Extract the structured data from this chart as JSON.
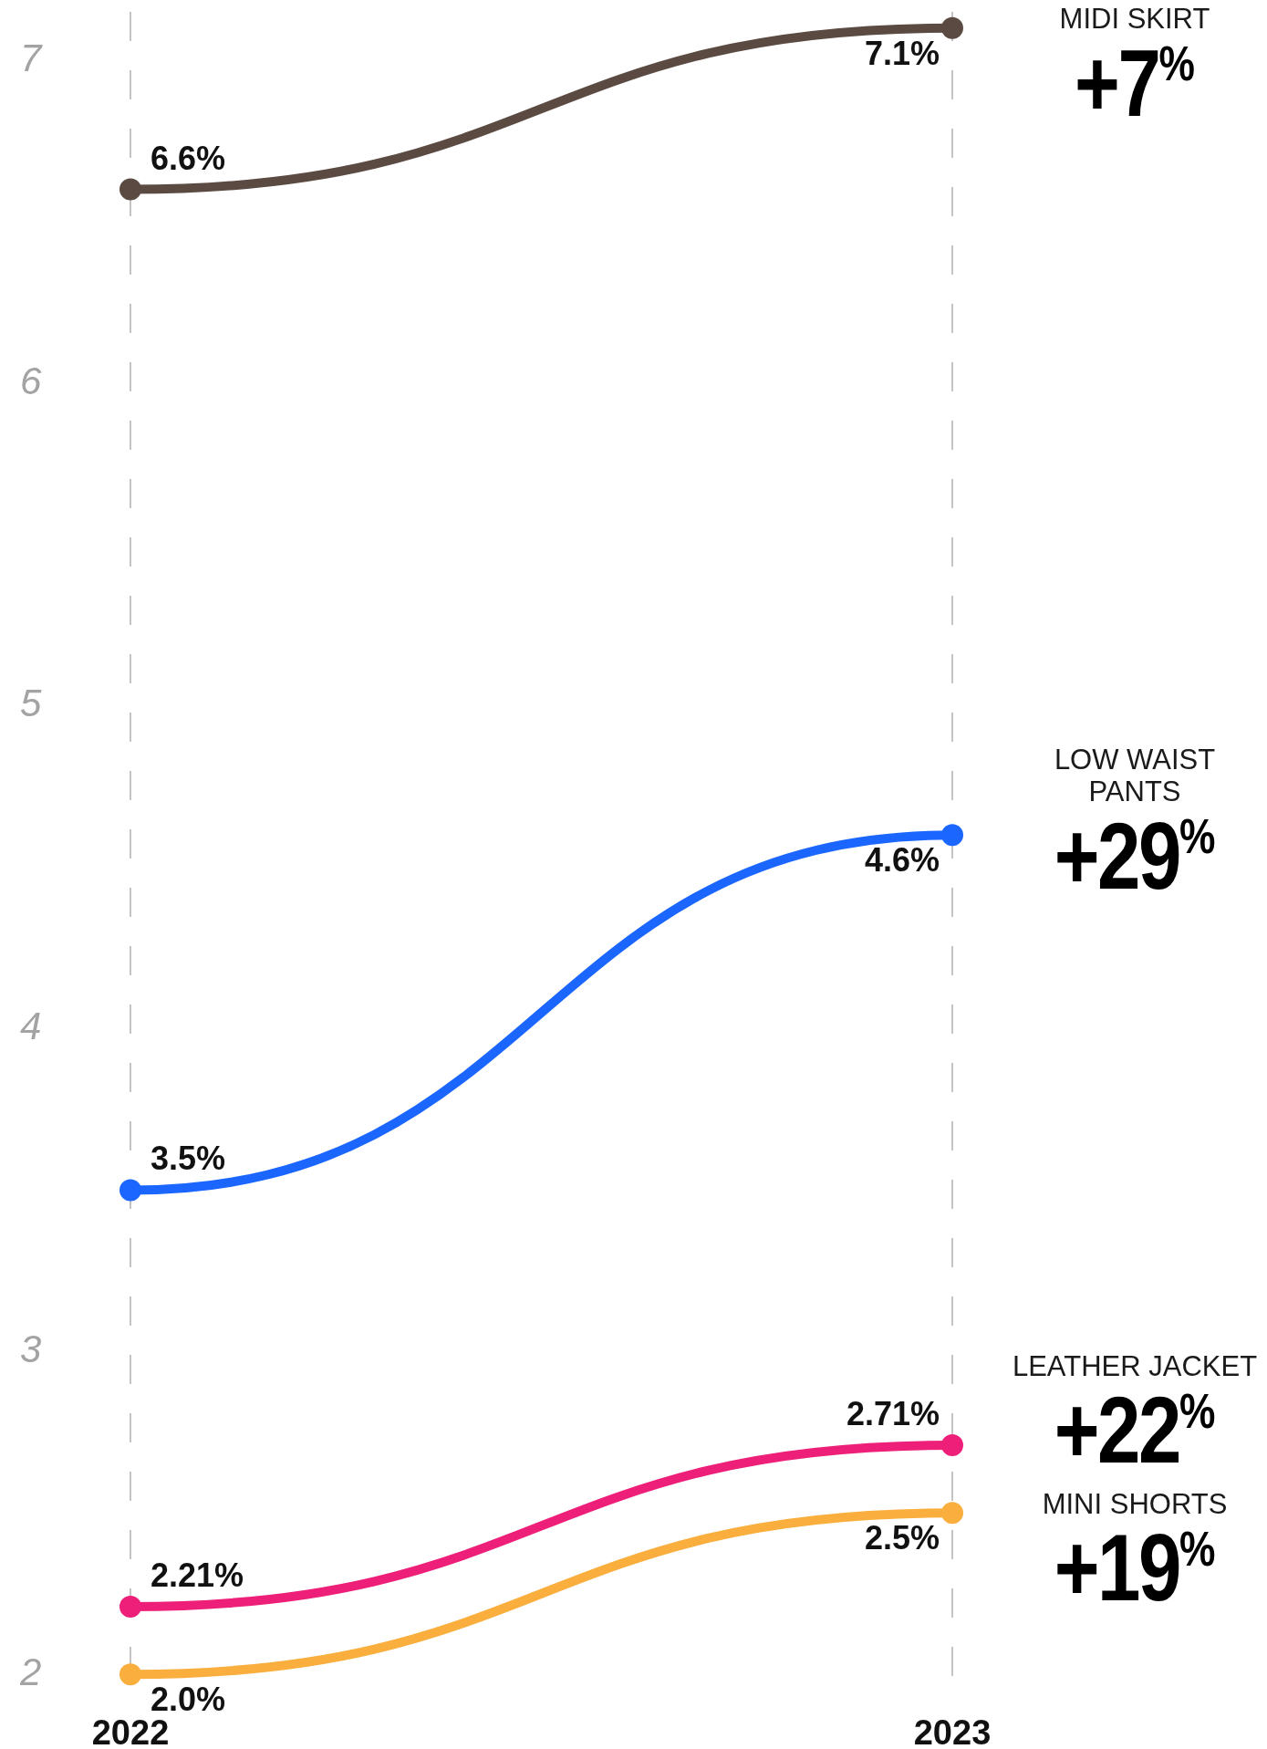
{
  "chart_data": {
    "type": "line",
    "categories": [
      "2022",
      "2023"
    ],
    "series": [
      {
        "name": "MIDI SKIRT",
        "color": "#5a4a42",
        "values": [
          6.6,
          7.1
        ],
        "value_labels": [
          "6.6%",
          "7.1%"
        ]
      },
      {
        "name": "LOW WAIST PANTS",
        "color": "#1a66ff",
        "values": [
          3.5,
          4.6
        ],
        "value_labels": [
          "3.5%",
          "4.6%"
        ]
      },
      {
        "name": "LEATHER JACKET",
        "color": "#ed1f79",
        "values": [
          2.21,
          2.71
        ],
        "value_labels": [
          "2.21%",
          "2.71%"
        ]
      },
      {
        "name": "MINI SHORTS",
        "color": "#f9ae3d",
        "values": [
          2,
          2.5
        ],
        "value_labels": [
          "2.0%",
          "2.5%"
        ]
      }
    ],
    "ylim": [
      1.93,
      7.15
    ],
    "yticks": [
      2,
      3,
      4,
      5,
      6,
      7
    ],
    "grid": "x",
    "marker": "circle",
    "line_style": "solid",
    "annotations": [
      {
        "text": "+7$^{%}$",
        "x": "2023",
        "y": 7.1
      },
      {
        "text": "+29$^{%}$",
        "x": "2023",
        "y": 4.6
      },
      {
        "text": "+22$^{%}$",
        "x": "2023",
        "y": 2.71
      },
      {
        "text": "+19$^{%}$",
        "x": "2023",
        "y": 2.5
      }
    ]
  }
}
